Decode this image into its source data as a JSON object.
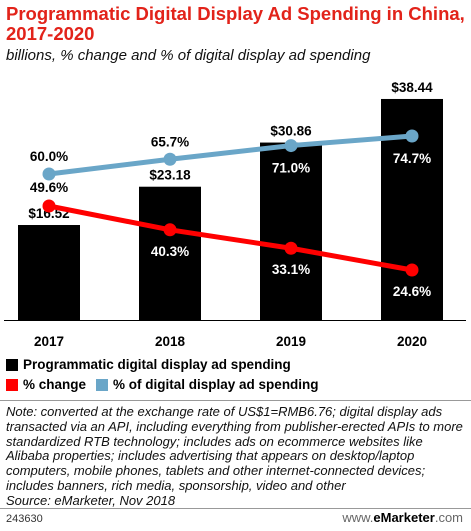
{
  "header": {
    "title": "Programmatic Digital Display Ad Spending in China, 2017-2020",
    "subtitle": "billions, % change and % of digital display ad spending"
  },
  "legend": {
    "bars_label": "Programmatic digital display ad spending",
    "change_label": "% change",
    "share_label": "% of digital display ad spending"
  },
  "colors": {
    "bars": "#000000",
    "change": "#ff0000",
    "share": "#6aa6c8"
  },
  "chart_data": {
    "type": "bar",
    "categories": [
      "2017",
      "2018",
      "2019",
      "2020"
    ],
    "series": [
      {
        "name": "Programmatic digital display ad spending",
        "type": "bar",
        "values": [
          16.52,
          23.18,
          30.86,
          38.44
        ],
        "labels": [
          "$16.52",
          "$23.18",
          "$30.86",
          "$38.44"
        ]
      },
      {
        "name": "% change",
        "type": "line",
        "values": [
          49.6,
          40.3,
          33.1,
          24.6
        ],
        "labels": [
          "49.6%",
          "40.3%",
          "33.1%",
          "24.6%"
        ]
      },
      {
        "name": "% of digital display ad spending",
        "type": "line",
        "values": [
          60.0,
          65.7,
          71.0,
          74.7
        ],
        "labels": [
          "60.0%",
          "65.7%",
          "71.0%",
          "74.7%"
        ]
      }
    ]
  },
  "footnote": {
    "note": "Note: converted at the exchange rate of US$1=RMB6.76; digital display ads transacted via an API, including everything from publisher-erected APIs to more standardized RTB technology; includes ads on ecommerce websites like Alibaba properties; includes advertising that appears on desktop/laptop computers, mobile phones, tablets and other internet-connected devices; includes banners, rich media, sponsorship, video and other",
    "source": "Source: eMarketer, Nov 2018"
  },
  "footer": {
    "id": "243630",
    "brand_www": "www.",
    "brand_name": "eMarketer",
    "brand_com": ".com"
  }
}
